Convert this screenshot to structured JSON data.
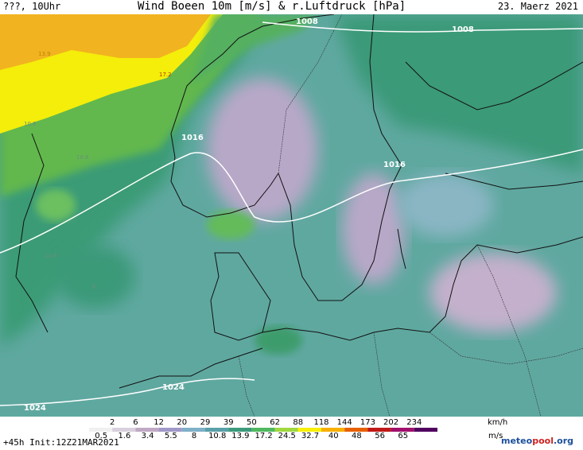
{
  "header": {
    "left": "???, 10Uhr",
    "title": "Wind Boeen 10m [m/s] & r.Luftdruck [hPa]",
    "date": "23. Maerz 2021"
  },
  "map": {
    "isobars": [
      "1008",
      "1008",
      "1016",
      "1016",
      "1024",
      "1024"
    ],
    "gust_labels": [
      "17.2",
      "13.9",
      "10.8",
      "10.8",
      "8",
      "10.8"
    ]
  },
  "legend": {
    "kmh_values": [
      "2",
      "6",
      "12",
      "20",
      "29",
      "39",
      "50",
      "62",
      "88",
      "118",
      "144",
      "173",
      "202",
      "234"
    ],
    "kmh_unit": "km/h",
    "ms_values": [
      "0.5",
      "1.6",
      "3.4",
      "5.5",
      "8",
      "10.8",
      "13.9",
      "17.2",
      "24.5",
      "32.7",
      "40",
      "48",
      "56",
      "65"
    ],
    "ms_unit": "m/s",
    "colors": [
      "#f0f0f0",
      "#d8d0dc",
      "#c0a8c4",
      "#a098c8",
      "#7fb0c8",
      "#5aa0a8",
      "#3c9a7c",
      "#50b860",
      "#a0d840",
      "#f8f000",
      "#f8b000",
      "#e86000",
      "#c01818",
      "#a0106c",
      "#500060"
    ]
  },
  "footer": {
    "init": "+45h Init:12Z21MAR2021",
    "brand_a": "meteo",
    "brand_b": "pool",
    "brand_c": ".org"
  }
}
